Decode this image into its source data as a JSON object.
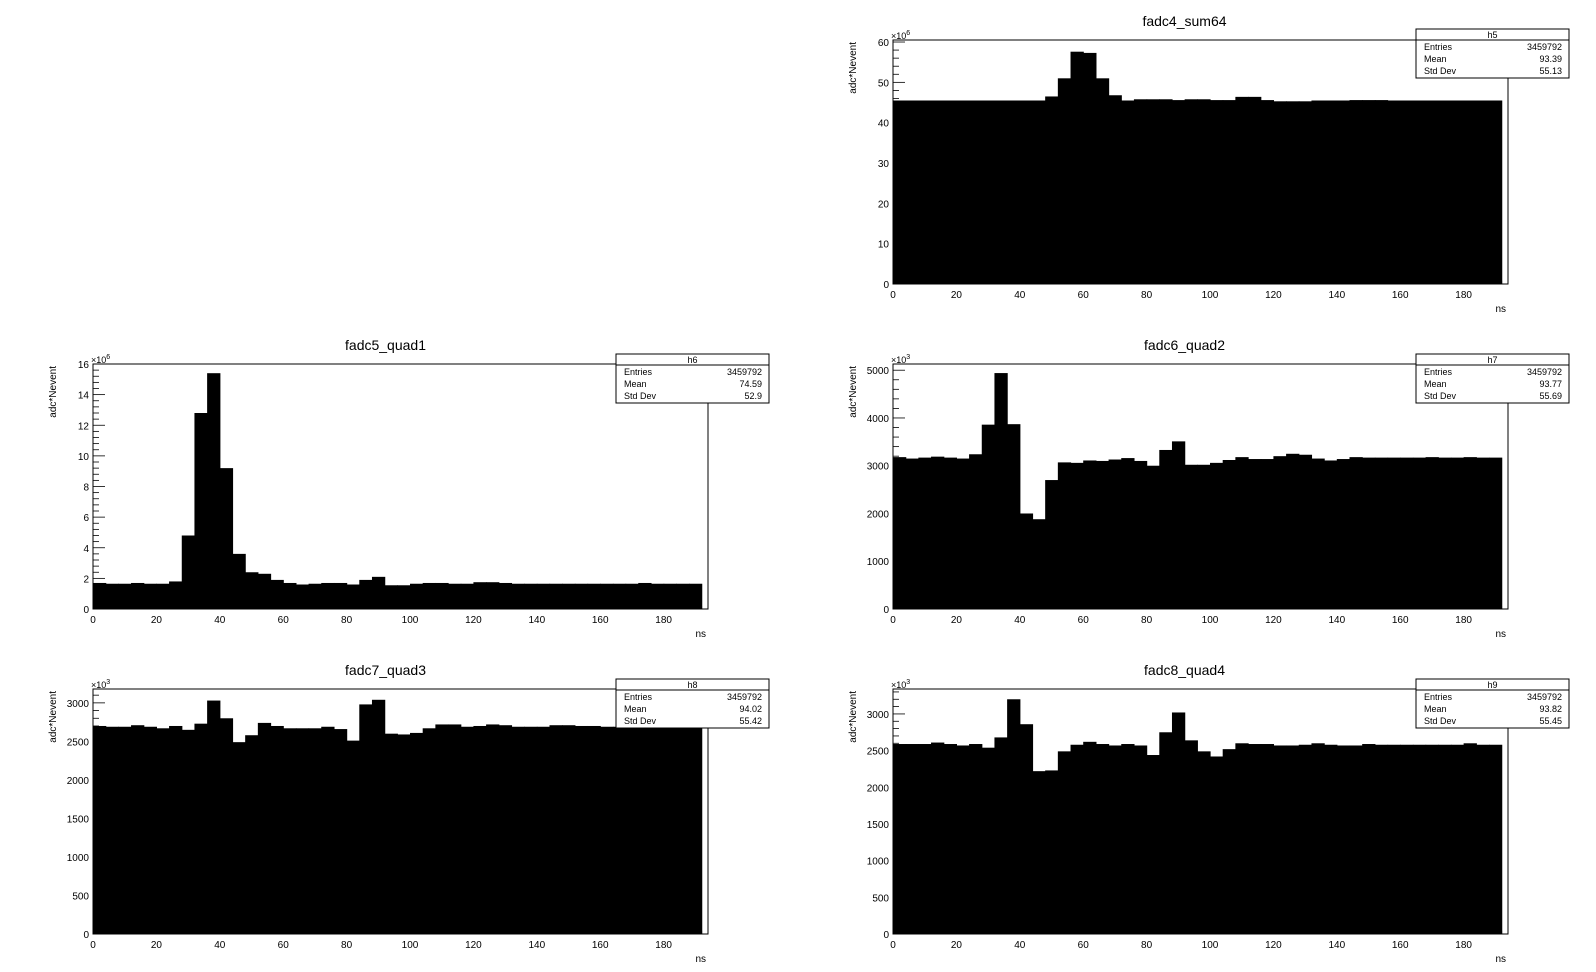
{
  "chart_data": [
    {
      "type": "bar",
      "title": "fadc4_sum64",
      "xlabel": "ns",
      "ylabel": "adc*Nevent",
      "yexp": "6",
      "xlim": [
        0,
        194
      ],
      "ylim": [
        0,
        60.5
      ],
      "xticks": [
        0,
        20,
        40,
        60,
        80,
        100,
        120,
        140,
        160,
        180
      ],
      "yticks": [
        0,
        10,
        20,
        30,
        40,
        50,
        60
      ],
      "bin_width": 4,
      "values": [
        45.5,
        45.5,
        45.5,
        45.5,
        45.5,
        45.5,
        45.5,
        45.5,
        45.5,
        45.5,
        45.5,
        45.5,
        46.5,
        51.0,
        57.6,
        57.3,
        51.0,
        46.8,
        45.5,
        45.8,
        45.8,
        45.8,
        45.6,
        45.8,
        45.8,
        45.6,
        45.6,
        46.4,
        46.4,
        45.6,
        45.3,
        45.3,
        45.3,
        45.5,
        45.5,
        45.5,
        45.6,
        45.6,
        45.6,
        45.5,
        45.5,
        45.5,
        45.5,
        45.5,
        45.5,
        45.5,
        45.5,
        45.5
      ],
      "stats": {
        "name": "h5",
        "rows": [
          {
            "label": "Entries",
            "value": "3459792"
          },
          {
            "label": "Mean",
            "value": "93.39"
          },
          {
            "label": "Std Dev",
            "value": "55.13"
          }
        ]
      }
    },
    {
      "type": "bar",
      "title": "fadc5_quad1",
      "xlabel": "ns",
      "ylabel": "adc*Nevent",
      "yexp": "6",
      "xlim": [
        0,
        194
      ],
      "ylim": [
        0,
        16.0
      ],
      "xticks": [
        0,
        20,
        40,
        60,
        80,
        100,
        120,
        140,
        160,
        180
      ],
      "yticks": [
        0,
        2,
        4,
        6,
        8,
        10,
        12,
        14,
        16
      ],
      "bin_width": 4,
      "values": [
        1.7,
        1.65,
        1.65,
        1.7,
        1.65,
        1.65,
        1.8,
        4.8,
        12.8,
        15.4,
        9.2,
        3.6,
        2.4,
        2.3,
        1.9,
        1.7,
        1.6,
        1.65,
        1.7,
        1.7,
        1.6,
        1.9,
        2.1,
        1.55,
        1.55,
        1.65,
        1.7,
        1.7,
        1.65,
        1.65,
        1.75,
        1.75,
        1.7,
        1.65,
        1.65,
        1.65,
        1.65,
        1.65,
        1.65,
        1.65,
        1.65,
        1.65,
        1.65,
        1.7,
        1.65,
        1.65,
        1.65,
        1.65
      ],
      "stats": {
        "name": "h6",
        "rows": [
          {
            "label": "Entries",
            "value": "3459792"
          },
          {
            "label": "Mean",
            "value": "74.59"
          },
          {
            "label": "Std Dev",
            "value": "52.9"
          }
        ]
      }
    },
    {
      "type": "bar",
      "title": "fadc6_quad2",
      "xlabel": "ns",
      "ylabel": "adc*Nevent",
      "yexp": "3",
      "xlim": [
        0,
        194
      ],
      "ylim": [
        0,
        5130
      ],
      "xticks": [
        0,
        20,
        40,
        60,
        80,
        100,
        120,
        140,
        160,
        180
      ],
      "yticks": [
        0,
        1000,
        2000,
        3000,
        4000,
        5000
      ],
      "bin_width": 4,
      "values": [
        3180,
        3150,
        3170,
        3190,
        3170,
        3150,
        3240,
        3860,
        4940,
        3870,
        2000,
        1880,
        2700,
        3070,
        3060,
        3110,
        3100,
        3130,
        3160,
        3100,
        3000,
        3330,
        3510,
        3020,
        3020,
        3060,
        3120,
        3180,
        3140,
        3140,
        3200,
        3250,
        3230,
        3150,
        3110,
        3140,
        3180,
        3170,
        3170,
        3170,
        3170,
        3170,
        3180,
        3170,
        3170,
        3180,
        3170,
        3170
      ],
      "stats": {
        "name": "h7",
        "rows": [
          {
            "label": "Entries",
            "value": "3459792"
          },
          {
            "label": "Mean",
            "value": "93.77"
          },
          {
            "label": "Std Dev",
            "value": "55.69"
          }
        ]
      }
    },
    {
      "type": "bar",
      "title": "fadc7_quad3",
      "xlabel": "ns",
      "ylabel": "adc*Nevent",
      "yexp": "3",
      "xlim": [
        0,
        194
      ],
      "ylim": [
        0,
        3180
      ],
      "xticks": [
        0,
        20,
        40,
        60,
        80,
        100,
        120,
        140,
        160,
        180
      ],
      "yticks": [
        0,
        500,
        1000,
        1500,
        2000,
        2500,
        3000
      ],
      "bin_width": 4,
      "values": [
        2700,
        2690,
        2690,
        2710,
        2690,
        2670,
        2700,
        2650,
        2730,
        3030,
        2800,
        2490,
        2580,
        2740,
        2700,
        2670,
        2670,
        2670,
        2690,
        2660,
        2510,
        2980,
        3040,
        2600,
        2590,
        2610,
        2670,
        2720,
        2720,
        2690,
        2700,
        2720,
        2710,
        2690,
        2690,
        2690,
        2710,
        2710,
        2700,
        2700,
        2690,
        2690,
        2690,
        2690,
        2690,
        2690,
        2690,
        2690
      ],
      "stats": {
        "name": "h8",
        "rows": [
          {
            "label": "Entries",
            "value": "3459792"
          },
          {
            "label": "Mean",
            "value": "94.02"
          },
          {
            "label": "Std Dev",
            "value": "55.42"
          }
        ]
      }
    },
    {
      "type": "bar",
      "title": "fadc8_quad4",
      "xlabel": "ns",
      "ylabel": "adc*Nevent",
      "yexp": "3",
      "xlim": [
        0,
        194
      ],
      "ylim": [
        0,
        3340
      ],
      "xticks": [
        0,
        20,
        40,
        60,
        80,
        100,
        120,
        140,
        160,
        180
      ],
      "yticks": [
        0,
        500,
        1000,
        1500,
        2000,
        2500,
        3000
      ],
      "bin_width": 4,
      "values": [
        2590,
        2590,
        2590,
        2610,
        2590,
        2570,
        2590,
        2540,
        2680,
        3200,
        2860,
        2220,
        2230,
        2490,
        2580,
        2620,
        2590,
        2570,
        2590,
        2570,
        2440,
        2750,
        3020,
        2640,
        2490,
        2420,
        2520,
        2600,
        2590,
        2590,
        2570,
        2570,
        2580,
        2600,
        2580,
        2570,
        2570,
        2590,
        2580,
        2580,
        2580,
        2580,
        2580,
        2580,
        2580,
        2600,
        2580,
        2580
      ],
      "stats": {
        "name": "h9",
        "rows": [
          {
            "label": "Entries",
            "value": "3459792"
          },
          {
            "label": "Mean",
            "value": "93.82"
          },
          {
            "label": "Std Dev",
            "value": "55.45"
          }
        ]
      }
    }
  ]
}
